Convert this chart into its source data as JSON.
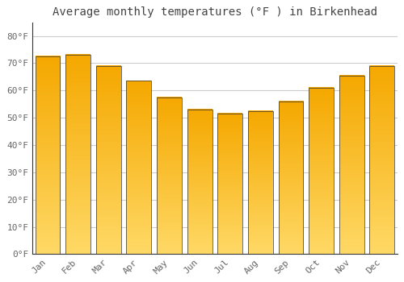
{
  "title": "Average monthly temperatures (°F ) in Birkenhead",
  "months": [
    "Jan",
    "Feb",
    "Mar",
    "Apr",
    "May",
    "Jun",
    "Jul",
    "Aug",
    "Sep",
    "Oct",
    "Nov",
    "Dec"
  ],
  "values": [
    72.5,
    73.0,
    69.0,
    63.5,
    57.5,
    53.0,
    51.5,
    52.5,
    56.0,
    61.0,
    65.5,
    69.0
  ],
  "bar_color_bottom": "#F5A800",
  "bar_color_top": "#FFD966",
  "bar_edge_color": "#333333",
  "background_color": "#FFFFFF",
  "plot_bg_color": "#FFFFFF",
  "grid_color": "#CCCCCC",
  "title_color": "#444444",
  "label_color": "#666666",
  "ylim": [
    0,
    85
  ],
  "yticks": [
    0,
    10,
    20,
    30,
    40,
    50,
    60,
    70,
    80
  ],
  "ytick_labels": [
    "0°F",
    "10°F",
    "20°F",
    "30°F",
    "40°F",
    "50°F",
    "60°F",
    "70°F",
    "80°F"
  ],
  "title_fontsize": 10,
  "tick_fontsize": 8,
  "font_family": "monospace"
}
